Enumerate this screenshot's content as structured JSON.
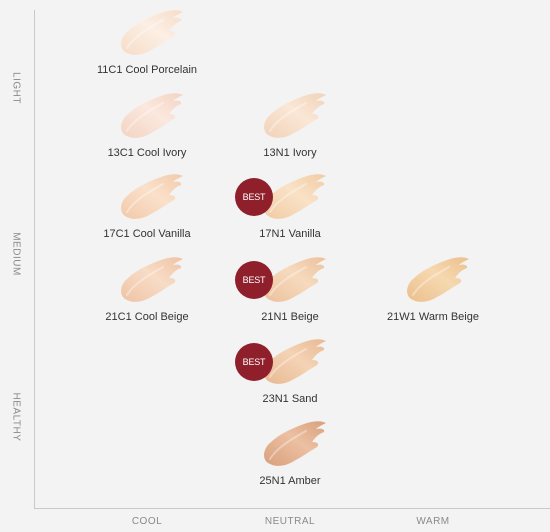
{
  "axes": {
    "y": [
      "LIGHT",
      "MEDIUM",
      "HEALTHY"
    ],
    "x": [
      "COOL",
      "NEUTRAL",
      "WARM"
    ]
  },
  "badge_label": "BEST",
  "shades": [
    {
      "name": "11C1 Cool Porcelain",
      "undertone": "COOL",
      "depth": 1,
      "best": false,
      "color": "#f6dcc8",
      "highlight": "#fcefe4"
    },
    {
      "name": "13C1 Cool Ivory",
      "undertone": "COOL",
      "depth": 2,
      "best": false,
      "color": "#f3d3c3",
      "highlight": "#fbe8de"
    },
    {
      "name": "13N1 Ivory",
      "undertone": "NEUTRAL",
      "depth": 2,
      "best": false,
      "color": "#f1d2b8",
      "highlight": "#fae7d6"
    },
    {
      "name": "17C1 Cool Vanilla",
      "undertone": "COOL",
      "depth": 3,
      "best": false,
      "color": "#f2c9a9",
      "highlight": "#fae1cb"
    },
    {
      "name": "17N1 Vanilla",
      "undertone": "NEUTRAL",
      "depth": 3,
      "best": true,
      "color": "#f1cba4",
      "highlight": "#f9e2c6"
    },
    {
      "name": "21C1 Cool Beige",
      "undertone": "COOL",
      "depth": 4,
      "best": false,
      "color": "#eec3a5",
      "highlight": "#f8dcc6"
    },
    {
      "name": "21N1 Beige",
      "undertone": "NEUTRAL",
      "depth": 4,
      "best": true,
      "color": "#ecc19c",
      "highlight": "#f6dabe"
    },
    {
      "name": "21W1 Warm Beige",
      "undertone": "WARM",
      "depth": 4,
      "best": false,
      "color": "#ebbf8d",
      "highlight": "#f6d9b0"
    },
    {
      "name": "23N1 Sand",
      "undertone": "NEUTRAL",
      "depth": 5,
      "best": true,
      "color": "#e8b992",
      "highlight": "#f4d3b5"
    },
    {
      "name": "25N1 Amber",
      "undertone": "NEUTRAL",
      "depth": 6,
      "best": false,
      "color": "#d8a07c",
      "highlight": "#ecc0a2"
    }
  ]
}
